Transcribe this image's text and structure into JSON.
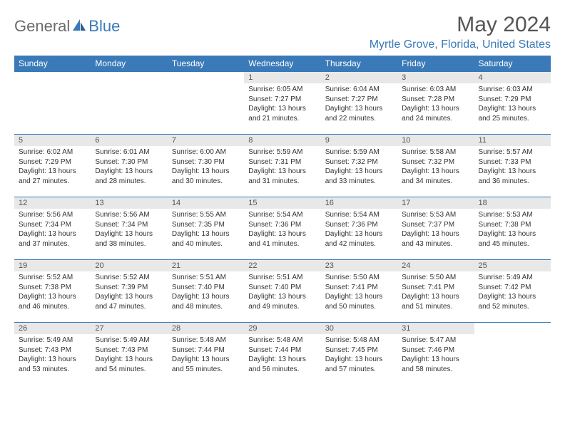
{
  "logo": {
    "part1": "General",
    "part2": "Blue"
  },
  "title": "May 2024",
  "location": "Myrtle Grove, Florida, United States",
  "colors": {
    "header_bg": "#3a7ab8",
    "header_fg": "#ffffff",
    "daynum_bg": "#e8e8e8",
    "border": "#3a7ab8",
    "text": "#333333",
    "logo_gray": "#6b6b6b",
    "logo_blue": "#3a7ab8"
  },
  "weekdays": [
    "Sunday",
    "Monday",
    "Tuesday",
    "Wednesday",
    "Thursday",
    "Friday",
    "Saturday"
  ],
  "weeks": [
    [
      {
        "empty": true
      },
      {
        "empty": true
      },
      {
        "empty": true
      },
      {
        "day": "1",
        "sunrise": "Sunrise: 6:05 AM",
        "sunset": "Sunset: 7:27 PM",
        "daylight": "Daylight: 13 hours and 21 minutes."
      },
      {
        "day": "2",
        "sunrise": "Sunrise: 6:04 AM",
        "sunset": "Sunset: 7:27 PM",
        "daylight": "Daylight: 13 hours and 22 minutes."
      },
      {
        "day": "3",
        "sunrise": "Sunrise: 6:03 AM",
        "sunset": "Sunset: 7:28 PM",
        "daylight": "Daylight: 13 hours and 24 minutes."
      },
      {
        "day": "4",
        "sunrise": "Sunrise: 6:03 AM",
        "sunset": "Sunset: 7:29 PM",
        "daylight": "Daylight: 13 hours and 25 minutes."
      }
    ],
    [
      {
        "day": "5",
        "sunrise": "Sunrise: 6:02 AM",
        "sunset": "Sunset: 7:29 PM",
        "daylight": "Daylight: 13 hours and 27 minutes."
      },
      {
        "day": "6",
        "sunrise": "Sunrise: 6:01 AM",
        "sunset": "Sunset: 7:30 PM",
        "daylight": "Daylight: 13 hours and 28 minutes."
      },
      {
        "day": "7",
        "sunrise": "Sunrise: 6:00 AM",
        "sunset": "Sunset: 7:30 PM",
        "daylight": "Daylight: 13 hours and 30 minutes."
      },
      {
        "day": "8",
        "sunrise": "Sunrise: 5:59 AM",
        "sunset": "Sunset: 7:31 PM",
        "daylight": "Daylight: 13 hours and 31 minutes."
      },
      {
        "day": "9",
        "sunrise": "Sunrise: 5:59 AM",
        "sunset": "Sunset: 7:32 PM",
        "daylight": "Daylight: 13 hours and 33 minutes."
      },
      {
        "day": "10",
        "sunrise": "Sunrise: 5:58 AM",
        "sunset": "Sunset: 7:32 PM",
        "daylight": "Daylight: 13 hours and 34 minutes."
      },
      {
        "day": "11",
        "sunrise": "Sunrise: 5:57 AM",
        "sunset": "Sunset: 7:33 PM",
        "daylight": "Daylight: 13 hours and 36 minutes."
      }
    ],
    [
      {
        "day": "12",
        "sunrise": "Sunrise: 5:56 AM",
        "sunset": "Sunset: 7:34 PM",
        "daylight": "Daylight: 13 hours and 37 minutes."
      },
      {
        "day": "13",
        "sunrise": "Sunrise: 5:56 AM",
        "sunset": "Sunset: 7:34 PM",
        "daylight": "Daylight: 13 hours and 38 minutes."
      },
      {
        "day": "14",
        "sunrise": "Sunrise: 5:55 AM",
        "sunset": "Sunset: 7:35 PM",
        "daylight": "Daylight: 13 hours and 40 minutes."
      },
      {
        "day": "15",
        "sunrise": "Sunrise: 5:54 AM",
        "sunset": "Sunset: 7:36 PM",
        "daylight": "Daylight: 13 hours and 41 minutes."
      },
      {
        "day": "16",
        "sunrise": "Sunrise: 5:54 AM",
        "sunset": "Sunset: 7:36 PM",
        "daylight": "Daylight: 13 hours and 42 minutes."
      },
      {
        "day": "17",
        "sunrise": "Sunrise: 5:53 AM",
        "sunset": "Sunset: 7:37 PM",
        "daylight": "Daylight: 13 hours and 43 minutes."
      },
      {
        "day": "18",
        "sunrise": "Sunrise: 5:53 AM",
        "sunset": "Sunset: 7:38 PM",
        "daylight": "Daylight: 13 hours and 45 minutes."
      }
    ],
    [
      {
        "day": "19",
        "sunrise": "Sunrise: 5:52 AM",
        "sunset": "Sunset: 7:38 PM",
        "daylight": "Daylight: 13 hours and 46 minutes."
      },
      {
        "day": "20",
        "sunrise": "Sunrise: 5:52 AM",
        "sunset": "Sunset: 7:39 PM",
        "daylight": "Daylight: 13 hours and 47 minutes."
      },
      {
        "day": "21",
        "sunrise": "Sunrise: 5:51 AM",
        "sunset": "Sunset: 7:40 PM",
        "daylight": "Daylight: 13 hours and 48 minutes."
      },
      {
        "day": "22",
        "sunrise": "Sunrise: 5:51 AM",
        "sunset": "Sunset: 7:40 PM",
        "daylight": "Daylight: 13 hours and 49 minutes."
      },
      {
        "day": "23",
        "sunrise": "Sunrise: 5:50 AM",
        "sunset": "Sunset: 7:41 PM",
        "daylight": "Daylight: 13 hours and 50 minutes."
      },
      {
        "day": "24",
        "sunrise": "Sunrise: 5:50 AM",
        "sunset": "Sunset: 7:41 PM",
        "daylight": "Daylight: 13 hours and 51 minutes."
      },
      {
        "day": "25",
        "sunrise": "Sunrise: 5:49 AM",
        "sunset": "Sunset: 7:42 PM",
        "daylight": "Daylight: 13 hours and 52 minutes."
      }
    ],
    [
      {
        "day": "26",
        "sunrise": "Sunrise: 5:49 AM",
        "sunset": "Sunset: 7:43 PM",
        "daylight": "Daylight: 13 hours and 53 minutes."
      },
      {
        "day": "27",
        "sunrise": "Sunrise: 5:49 AM",
        "sunset": "Sunset: 7:43 PM",
        "daylight": "Daylight: 13 hours and 54 minutes."
      },
      {
        "day": "28",
        "sunrise": "Sunrise: 5:48 AM",
        "sunset": "Sunset: 7:44 PM",
        "daylight": "Daylight: 13 hours and 55 minutes."
      },
      {
        "day": "29",
        "sunrise": "Sunrise: 5:48 AM",
        "sunset": "Sunset: 7:44 PM",
        "daylight": "Daylight: 13 hours and 56 minutes."
      },
      {
        "day": "30",
        "sunrise": "Sunrise: 5:48 AM",
        "sunset": "Sunset: 7:45 PM",
        "daylight": "Daylight: 13 hours and 57 minutes."
      },
      {
        "day": "31",
        "sunrise": "Sunrise: 5:47 AM",
        "sunset": "Sunset: 7:46 PM",
        "daylight": "Daylight: 13 hours and 58 minutes."
      },
      {
        "empty": true
      }
    ]
  ]
}
